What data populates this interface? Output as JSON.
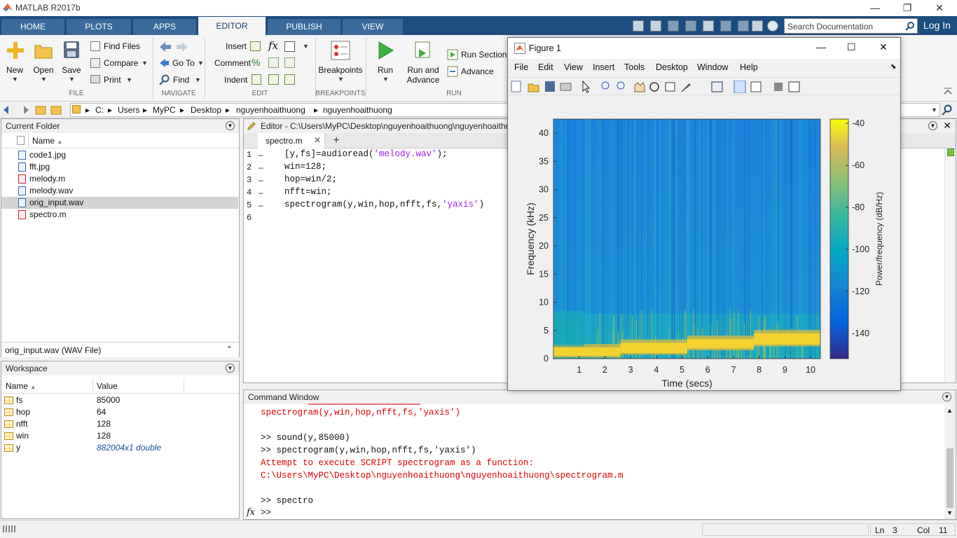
{
  "app": {
    "title": "MATLAB R2017b"
  },
  "window_controls": {
    "minimize": "—",
    "restore": "❐",
    "close": "✕"
  },
  "tabs": [
    {
      "label": "HOME"
    },
    {
      "label": "PLOTS"
    },
    {
      "label": "APPS"
    },
    {
      "label": "EDITOR"
    },
    {
      "label": "PUBLISH"
    },
    {
      "label": "VIEW"
    }
  ],
  "search": {
    "placeholder": "Search Documentation"
  },
  "login": "Log In",
  "ribbon": {
    "file": {
      "new": "New",
      "open": "Open",
      "save": "Save",
      "find_files": "Find Files",
      "compare": "Compare",
      "print": "Print",
      "section": "FILE"
    },
    "navigate": {
      "go_to": "Go To",
      "find": "Find",
      "section": "NAVIGATE"
    },
    "edit": {
      "insert": "Insert",
      "comment": "Comment",
      "indent": "Indent",
      "fx": "fx",
      "section": "EDIT"
    },
    "breakpoints": {
      "label": "Breakpoints",
      "section": "BREAKPOINTS"
    },
    "run": {
      "run": "Run",
      "run_advance": "Run and",
      "run_advance2": "Advance",
      "run_section": "Run Section",
      "advance": "Advance",
      "section": "RUN"
    }
  },
  "address": {
    "crumbs": [
      "C:",
      "Users",
      "MyPC",
      "Desktop",
      "nguyenhoaithuong",
      "nguyenhoaithuong"
    ]
  },
  "current_folder": {
    "title": "Current Folder",
    "column": "Name",
    "files": [
      {
        "name": "code1.jpg",
        "type": "img"
      },
      {
        "name": "fft.jpg",
        "type": "img"
      },
      {
        "name": "melody.m",
        "type": "m"
      },
      {
        "name": "melody.wav",
        "type": "wav"
      },
      {
        "name": "orig_input.wav",
        "type": "wav",
        "selected": true
      },
      {
        "name": "spectro.m",
        "type": "m"
      }
    ],
    "details": "orig_input.wav  (WAV File)"
  },
  "workspace": {
    "title": "Workspace",
    "columns": {
      "name": "Name",
      "value": "Value"
    },
    "vars": [
      {
        "name": "fs",
        "value": "85000"
      },
      {
        "name": "hop",
        "value": "64"
      },
      {
        "name": "nfft",
        "value": "128"
      },
      {
        "name": "win",
        "value": "128"
      },
      {
        "name": "y",
        "value": "882004x1 double"
      }
    ]
  },
  "editor": {
    "title": "Editor - C:\\Users\\MyPC\\Desktop\\nguyenhoaithuong\\nguyenhoaithuong\\spectro.m",
    "tab": "spectro.m",
    "add_tab": "+",
    "lines": [
      {
        "n": "1",
        "pre": "[y,fs]=audioread(",
        "str": "'melody.wav'",
        "post": ");"
      },
      {
        "n": "2",
        "pre": "win=128;",
        "str": "",
        "post": ""
      },
      {
        "n": "3",
        "pre": "hop=win/2;",
        "str": "",
        "post": ""
      },
      {
        "n": "4",
        "pre": "nfft=win;",
        "str": "",
        "post": ""
      },
      {
        "n": "5",
        "pre": "spectrogram(y,win,hop,nfft,fs,",
        "str": "'yaxis'",
        "post": ")"
      },
      {
        "n": "6",
        "pre": "",
        "str": "",
        "post": ""
      }
    ]
  },
  "command_window": {
    "title": "Command Window",
    "lines": [
      {
        "text": "spectrogram(y,win,hop,nfft,fs,'yaxis')",
        "err": true
      },
      {
        "text": "",
        "err": false
      },
      {
        "text": ">> sound(y,85000)",
        "err": false
      },
      {
        "text": ">> spectrogram(y,win,hop,nfft,fs,'yaxis')",
        "err": false
      },
      {
        "text": "Attempt to execute SCRIPT spectrogram as a function:",
        "err": true
      },
      {
        "text": "C:\\Users\\MyPC\\Desktop\\nguyenhoaithuong\\nguyenhoaithuong\\spectrogram.m",
        "err": true
      },
      {
        "text": "",
        "err": false
      },
      {
        "text": ">> spectro",
        "err": false
      }
    ],
    "prompt": ">>",
    "fx": "fx"
  },
  "figure": {
    "title": "Figure 1",
    "menu": [
      "File",
      "Edit",
      "View",
      "Insert",
      "Tools",
      "Desktop",
      "Window",
      "Help"
    ]
  },
  "chart_data": {
    "type": "heatmap",
    "title": "",
    "xlabel": "Time (secs)",
    "ylabel": "Frequency (kHz)",
    "colorbar_label": "Power/frequency (dB/Hz)",
    "xlim": [
      0,
      10.38
    ],
    "ylim": [
      0,
      42.5
    ],
    "xticks": [
      1,
      2,
      3,
      4,
      5,
      6,
      7,
      8,
      9,
      10
    ],
    "yticks": [
      0,
      5,
      10,
      15,
      20,
      25,
      30,
      35,
      40
    ],
    "clim": [
      -152,
      -38
    ],
    "cticks": [
      -40,
      -60,
      -80,
      -100,
      -120,
      -140
    ],
    "notes": [
      {
        "t_start": 0,
        "t_end": 2.6,
        "f_low": 0.5,
        "f_high": 2.0
      },
      {
        "t_start": 2.6,
        "t_end": 5.2,
        "f_low": 1.0,
        "f_high": 2.8
      },
      {
        "t_start": 5.2,
        "t_end": 7.8,
        "f_low": 1.8,
        "f_high": 3.5
      },
      {
        "t_start": 7.8,
        "t_end": 10.38,
        "f_low": 2.5,
        "f_high": 4.5
      }
    ]
  },
  "status": {
    "ln_label": "Ln",
    "ln": "3",
    "col_label": "Col",
    "col": "11"
  }
}
